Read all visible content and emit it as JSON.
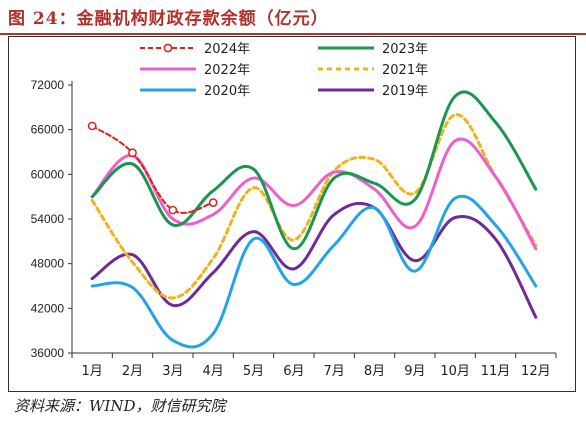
{
  "header": {
    "title": "图 24：金融机构财政存款余额（亿元）"
  },
  "footer": {
    "source": "资料来源：WIND，财信研究院"
  },
  "chart_data": {
    "type": "line",
    "title": "金融机构财政存款余额（亿元）",
    "categories": [
      "1月",
      "2月",
      "3月",
      "4月",
      "5月",
      "6月",
      "7月",
      "8月",
      "9月",
      "10月",
      "11月",
      "12月"
    ],
    "ylim": [
      36000,
      72000
    ],
    "yticks": [
      36000,
      42000,
      48000,
      54000,
      60000,
      66000,
      72000
    ],
    "grid": false,
    "legend_position": "top",
    "series": [
      {
        "name": "2024年",
        "color": "#e0201e",
        "style": "dashed-marker",
        "values": [
          66500,
          62900,
          55200,
          56200,
          null,
          null,
          null,
          null,
          null,
          null,
          null,
          null
        ]
      },
      {
        "name": "2023年",
        "color": "#1a9650",
        "style": "solid",
        "values": [
          57000,
          61400,
          53200,
          57800,
          60700,
          50000,
          59500,
          58800,
          56600,
          70500,
          67000,
          58000
        ]
      },
      {
        "name": "2022年",
        "color": "#ee5fce",
        "style": "solid",
        "values": [
          57000,
          62500,
          54000,
          54600,
          59500,
          55800,
          60300,
          58000,
          53000,
          64500,
          59700,
          50000
        ]
      },
      {
        "name": "2021年",
        "color": "#f2b21a",
        "style": "dashed",
        "values": [
          56500,
          48200,
          43400,
          48700,
          58200,
          51200,
          60500,
          62000,
          57500,
          68000,
          59700,
          50500
        ]
      },
      {
        "name": "2020年",
        "color": "#22a4e6",
        "style": "solid",
        "values": [
          45000,
          44800,
          37700,
          38600,
          51300,
          45200,
          50500,
          55500,
          47000,
          56800,
          53200,
          45000
        ]
      },
      {
        "name": "2019年",
        "color": "#6f2a97",
        "style": "solid",
        "values": [
          46000,
          49200,
          42400,
          46800,
          52300,
          47300,
          54600,
          55500,
          48400,
          54200,
          51300,
          40800
        ]
      }
    ]
  }
}
